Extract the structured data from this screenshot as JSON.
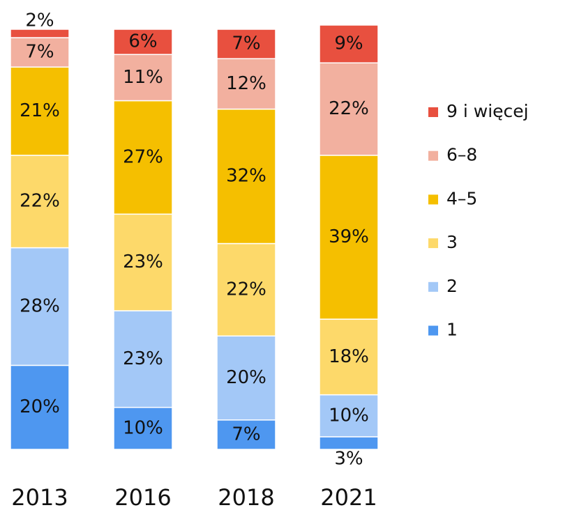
{
  "chart_data": {
    "type": "stacked_bar",
    "categories": [
      "2013",
      "2016",
      "2018",
      "2021"
    ],
    "series": [
      {
        "name": "1",
        "color": "#4e97f0",
        "values": [
          20,
          10,
          7,
          3
        ],
        "value_labels": [
          "20%",
          "10%",
          "7%",
          "3%"
        ]
      },
      {
        "name": "2",
        "color": "#a3c8f7",
        "values": [
          28,
          23,
          20,
          10
        ],
        "value_labels": [
          "28%",
          "23%",
          "20%",
          "10%"
        ]
      },
      {
        "name": "3",
        "color": "#fdd96a",
        "values": [
          22,
          23,
          22,
          18
        ],
        "value_labels": [
          "22%",
          "23%",
          "22%",
          "18%"
        ]
      },
      {
        "name": "4–5",
        "color": "#f5bf00",
        "values": [
          21,
          27,
          32,
          39
        ],
        "value_labels": [
          "21%",
          "27%",
          "32%",
          "39%"
        ]
      },
      {
        "name": "6–8",
        "color": "#f2b09f",
        "values": [
          7,
          11,
          12,
          22
        ],
        "value_labels": [
          "7%",
          "11%",
          "12%",
          "22%"
        ]
      },
      {
        "name": "9 i więcej",
        "color": "#e8503f",
        "values": [
          2,
          6,
          7,
          9
        ],
        "value_labels": [
          "2%",
          "6%",
          "7%",
          "9%"
        ]
      }
    ],
    "legend": "right"
  }
}
